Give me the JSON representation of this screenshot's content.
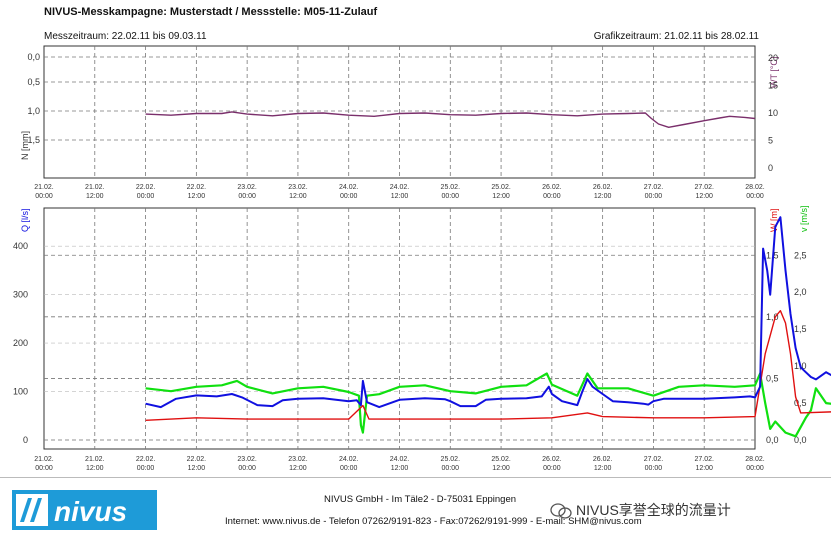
{
  "header": {
    "title": "NIVUS-Messkampagne: Musterstadt / Messstelle: M05-11-Zulauf",
    "measurement_period": "Messzeitraum: 22.02.11 bis 09.03.11",
    "graphic_period": "Grafikzeitraum: 21.02.11 bis 28.02.11"
  },
  "colors": {
    "temperature": "#7a2f6b",
    "flow_Q": "#1010e0",
    "level_W": "#e01010",
    "velocity_v": "#10e010",
    "grid": "#555555"
  },
  "chart_data": [
    {
      "type": "line",
      "name": "top-panel",
      "xlim": [
        "21.02. 00:00",
        "28.02. 00:00"
      ],
      "xticks": [
        "21.02.|00:00",
        "21.02.|12:00",
        "22.02.|00:00",
        "22.02.|12:00",
        "23.02.|00:00",
        "23.02.|12:00",
        "24.02.|00:00",
        "24.02.|12:00",
        "25.02.|00:00",
        "25.02.|12:00",
        "26.02.|00:00",
        "26.02.|12:00",
        "27.02.|00:00",
        "27.02.|12:00",
        "28.02.|00:00"
      ],
      "left_axis": {
        "label": "N [mm]",
        "ticks": [
          "0,0",
          "0,5",
          "1,0",
          "1,5"
        ]
      },
      "right_axis": {
        "label": "WT [°C]",
        "ticks": [
          "20",
          "15",
          "10",
          "5",
          "0"
        ],
        "ylim": [
          0,
          20
        ]
      },
      "series": [
        {
          "name": "WT",
          "axis": "right",
          "points": [
            [
              1.0,
              9.8
            ],
            [
              1.25,
              9.6
            ],
            [
              1.5,
              9.9
            ],
            [
              1.75,
              9.9
            ],
            [
              1.85,
              10.2
            ],
            [
              2.0,
              9.8
            ],
            [
              2.25,
              9.5
            ],
            [
              2.5,
              9.9
            ],
            [
              2.75,
              10.0
            ],
            [
              3.0,
              9.6
            ],
            [
              3.25,
              9.4
            ],
            [
              3.5,
              9.9
            ],
            [
              3.75,
              10.0
            ],
            [
              4.0,
              9.7
            ],
            [
              4.25,
              9.6
            ],
            [
              4.5,
              9.9
            ],
            [
              4.75,
              10.0
            ],
            [
              5.0,
              9.7
            ],
            [
              5.25,
              9.5
            ],
            [
              5.5,
              9.8
            ],
            [
              5.75,
              9.9
            ],
            [
              5.92,
              10.0
            ],
            [
              5.98,
              9.0
            ],
            [
              6.05,
              8.0
            ],
            [
              6.15,
              7.4
            ],
            [
              6.3,
              7.9
            ],
            [
              6.5,
              8.6
            ],
            [
              6.65,
              9.1
            ],
            [
              6.75,
              9.4
            ],
            [
              6.9,
              9.2
            ],
            [
              7.0,
              9.0
            ]
          ]
        }
      ]
    },
    {
      "type": "line",
      "name": "bottom-panel",
      "xlim": [
        "21.02. 00:00",
        "28.02. 00:00"
      ],
      "xticks": [
        "21.02.|00:00",
        "21.02.|12:00",
        "22.02.|00:00",
        "22.02.|12:00",
        "23.02.|00:00",
        "23.02.|12:00",
        "24.02.|00:00",
        "24.02.|12:00",
        "25.02.|00:00",
        "25.02.|12:00",
        "26.02.|00:00",
        "26.02.|12:00",
        "27.02.|00:00",
        "27.02.|12:00",
        "28.02.|00:00"
      ],
      "left_axis": {
        "label": "Q [l/s]",
        "ticks": [
          "400",
          "300",
          "200",
          "100",
          "0"
        ],
        "ylim": [
          0,
          450
        ]
      },
      "right_axis_W": {
        "label": "W [m]",
        "ticks": [
          "1,5",
          "1,0",
          "0,5",
          "0,0"
        ],
        "ylim": [
          0,
          1.77
        ]
      },
      "right_axis_v": {
        "label": "v [m/s]",
        "ticks": [
          "2,5",
          "2,0",
          "1,5",
          "1,0",
          "0,5",
          "0,0"
        ],
        "ylim": [
          0,
          2.95
        ]
      },
      "series": [
        {
          "name": "Q",
          "axis": "left",
          "points": [
            [
              1.0,
              75
            ],
            [
              1.15,
              68
            ],
            [
              1.3,
              85
            ],
            [
              1.5,
              92
            ],
            [
              1.7,
              90
            ],
            [
              1.85,
              95
            ],
            [
              1.95,
              88
            ],
            [
              2.1,
              72
            ],
            [
              2.25,
              70
            ],
            [
              2.35,
              82
            ],
            [
              2.5,
              85
            ],
            [
              2.75,
              86
            ],
            [
              3.0,
              80
            ],
            [
              3.08,
              82
            ],
            [
              3.12,
              72
            ],
            [
              3.14,
              122
            ],
            [
              3.18,
              78
            ],
            [
              3.3,
              68
            ],
            [
              3.5,
              83
            ],
            [
              3.75,
              86
            ],
            [
              3.95,
              84
            ],
            [
              4.0,
              80
            ],
            [
              4.1,
              70
            ],
            [
              4.25,
              70
            ],
            [
              4.35,
              83
            ],
            [
              4.5,
              85
            ],
            [
              4.75,
              86
            ],
            [
              4.9,
              90
            ],
            [
              4.97,
              110
            ],
            [
              5.0,
              95
            ],
            [
              5.1,
              80
            ],
            [
              5.25,
              72
            ],
            [
              5.3,
              100
            ],
            [
              5.35,
              126
            ],
            [
              5.4,
              110
            ],
            [
              5.5,
              95
            ],
            [
              5.6,
              80
            ],
            [
              5.75,
              78
            ],
            [
              5.9,
              75
            ],
            [
              5.95,
              73
            ],
            [
              6.0,
              80
            ],
            [
              6.1,
              85
            ],
            [
              6.5,
              85
            ],
            [
              6.8,
              88
            ],
            [
              6.95,
              90
            ],
            [
              7.0,
              88
            ],
            [
              7.05,
              110
            ],
            [
              7.08,
              395
            ],
            [
              7.12,
              350
            ],
            [
              7.15,
              300
            ],
            [
              7.2,
              440
            ],
            [
              7.25,
              460
            ],
            [
              7.3,
              350
            ],
            [
              7.35,
              260
            ],
            [
              7.4,
              190
            ],
            [
              7.45,
              150
            ],
            [
              7.5,
              140
            ],
            [
              7.55,
              130
            ],
            [
              7.6,
              125
            ],
            [
              7.7,
              140
            ],
            [
              7.8,
              128
            ],
            [
              7.9,
              170
            ],
            [
              7.95,
              135
            ],
            [
              8.0,
              125
            ],
            [
              8.1,
              165
            ],
            [
              8.15,
              140
            ],
            [
              8.3,
              110
            ],
            [
              8.5,
              95
            ],
            [
              8.7,
              90
            ],
            [
              9.0,
              80
            ]
          ]
        },
        {
          "name": "W",
          "axis": "right_W",
          "points": [
            [
              1.0,
              0.16
            ],
            [
              1.5,
              0.18
            ],
            [
              2.0,
              0.17
            ],
            [
              2.5,
              0.17
            ],
            [
              3.0,
              0.17
            ],
            [
              3.14,
              0.28
            ],
            [
              3.2,
              0.17
            ],
            [
              3.5,
              0.17
            ],
            [
              4.0,
              0.17
            ],
            [
              4.5,
              0.17
            ],
            [
              5.0,
              0.18
            ],
            [
              5.35,
              0.22
            ],
            [
              5.5,
              0.19
            ],
            [
              6.0,
              0.18
            ],
            [
              6.5,
              0.18
            ],
            [
              7.0,
              0.19
            ],
            [
              7.1,
              0.7
            ],
            [
              7.2,
              1.0
            ],
            [
              7.25,
              1.05
            ],
            [
              7.3,
              0.95
            ],
            [
              7.35,
              0.7
            ],
            [
              7.4,
              0.35
            ],
            [
              7.45,
              0.22
            ],
            [
              7.8,
              0.23
            ],
            [
              8.0,
              0.22
            ],
            [
              8.1,
              0.25
            ],
            [
              8.3,
              0.2
            ],
            [
              9.0,
              0.18
            ]
          ]
        },
        {
          "name": "v",
          "axis": "right_v",
          "points": [
            [
              1.0,
              0.7
            ],
            [
              1.25,
              0.66
            ],
            [
              1.5,
              0.72
            ],
            [
              1.75,
              0.74
            ],
            [
              1.9,
              0.8
            ],
            [
              2.0,
              0.72
            ],
            [
              2.25,
              0.63
            ],
            [
              2.5,
              0.7
            ],
            [
              2.75,
              0.72
            ],
            [
              3.0,
              0.65
            ],
            [
              3.1,
              0.6
            ],
            [
              3.12,
              0.2
            ],
            [
              3.14,
              0.1
            ],
            [
              3.18,
              0.6
            ],
            [
              3.3,
              0.62
            ],
            [
              3.5,
              0.72
            ],
            [
              3.75,
              0.74
            ],
            [
              4.0,
              0.66
            ],
            [
              4.25,
              0.63
            ],
            [
              4.5,
              0.72
            ],
            [
              4.75,
              0.74
            ],
            [
              4.95,
              0.9
            ],
            [
              5.0,
              0.75
            ],
            [
              5.25,
              0.6
            ],
            [
              5.35,
              0.9
            ],
            [
              5.45,
              0.7
            ],
            [
              5.75,
              0.7
            ],
            [
              6.0,
              0.6
            ],
            [
              6.25,
              0.72
            ],
            [
              6.5,
              0.74
            ],
            [
              6.8,
              0.72
            ],
            [
              7.0,
              0.74
            ],
            [
              7.05,
              0.9
            ],
            [
              7.1,
              0.5
            ],
            [
              7.15,
              0.15
            ],
            [
              7.2,
              0.25
            ],
            [
              7.3,
              0.1
            ],
            [
              7.4,
              0.05
            ],
            [
              7.5,
              0.3
            ],
            [
              7.55,
              0.4
            ],
            [
              7.6,
              0.7
            ],
            [
              7.7,
              0.5
            ],
            [
              7.8,
              0.48
            ],
            [
              7.95,
              0.6
            ],
            [
              8.1,
              0.45
            ],
            [
              8.3,
              0.5
            ],
            [
              8.6,
              0.48
            ],
            [
              8.8,
              0.4
            ],
            [
              9.0,
              0.35
            ]
          ]
        }
      ]
    }
  ],
  "footer": {
    "logo_text": "nivus",
    "address": "NIVUS GmbH - Im Täle2 - D-75031 Eppingen",
    "contact": "Internet: www.nivus.de - Telefon 07262/9191-823 - Fax:07262/9191-999 - E-mail: SHM@nivus.com",
    "watermark": "NIVUS享誉全球的流量计"
  }
}
